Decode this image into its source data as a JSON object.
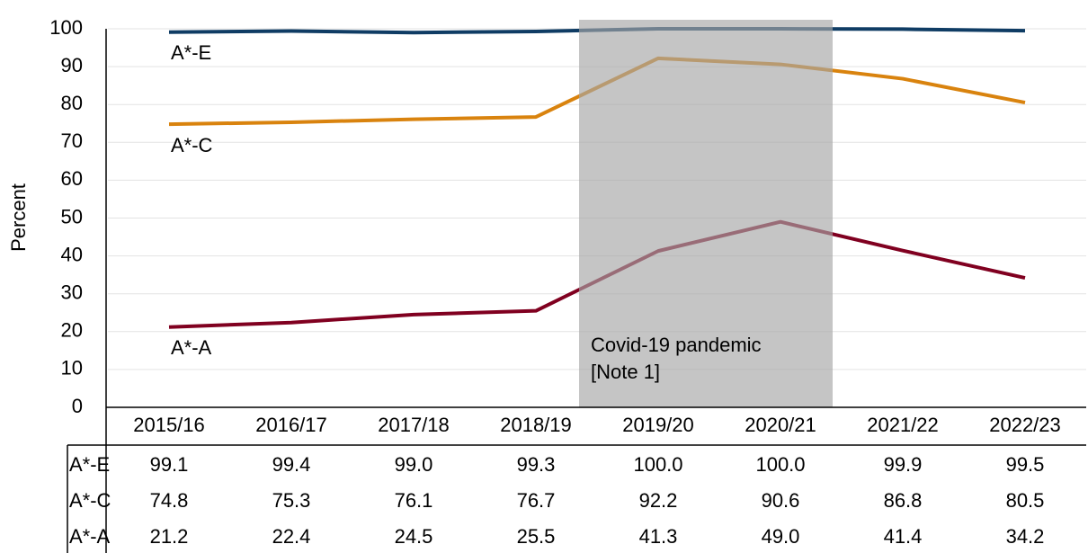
{
  "chart_data": {
    "type": "line",
    "y_label": "Percent",
    "categories": [
      "2015/16",
      "2016/17",
      "2017/18",
      "2018/19",
      "2019/20",
      "2020/21",
      "2021/22",
      "2022/23"
    ],
    "series": [
      {
        "name": "A*-E",
        "color": "#0f3c64",
        "values": [
          99.1,
          99.4,
          99.0,
          99.3,
          100.0,
          100.0,
          99.9,
          99.5
        ],
        "value_labels": [
          "99.1",
          "99.4",
          "99.0",
          "99.3",
          "100.0",
          "100.0",
          "99.9",
          "99.5"
        ]
      },
      {
        "name": "A*-C",
        "color": "#d9830e",
        "values": [
          74.8,
          75.3,
          76.1,
          76.7,
          92.2,
          90.6,
          86.8,
          80.5
        ],
        "value_labels": [
          "74.8",
          "75.3",
          "76.1",
          "76.7",
          "92.2",
          "90.6",
          "86.8",
          "80.5"
        ]
      },
      {
        "name": "A*-A",
        "color": "#800020",
        "values": [
          21.2,
          22.4,
          24.5,
          25.5,
          41.3,
          49.0,
          41.4,
          34.2
        ],
        "value_labels": [
          "21.2",
          "22.4",
          "24.5",
          "25.5",
          "41.3",
          "49.0",
          "41.4",
          "34.2"
        ]
      }
    ],
    "annotation": {
      "text": [
        "Covid-19 pandemic",
        "[Note 1]"
      ],
      "categories": [
        "2019/20",
        "2020/21"
      ]
    },
    "ylim": [
      0,
      100
    ],
    "yticks": [
      0,
      10,
      20,
      30,
      40,
      50,
      60,
      70,
      80,
      90,
      100
    ],
    "grid": true
  }
}
